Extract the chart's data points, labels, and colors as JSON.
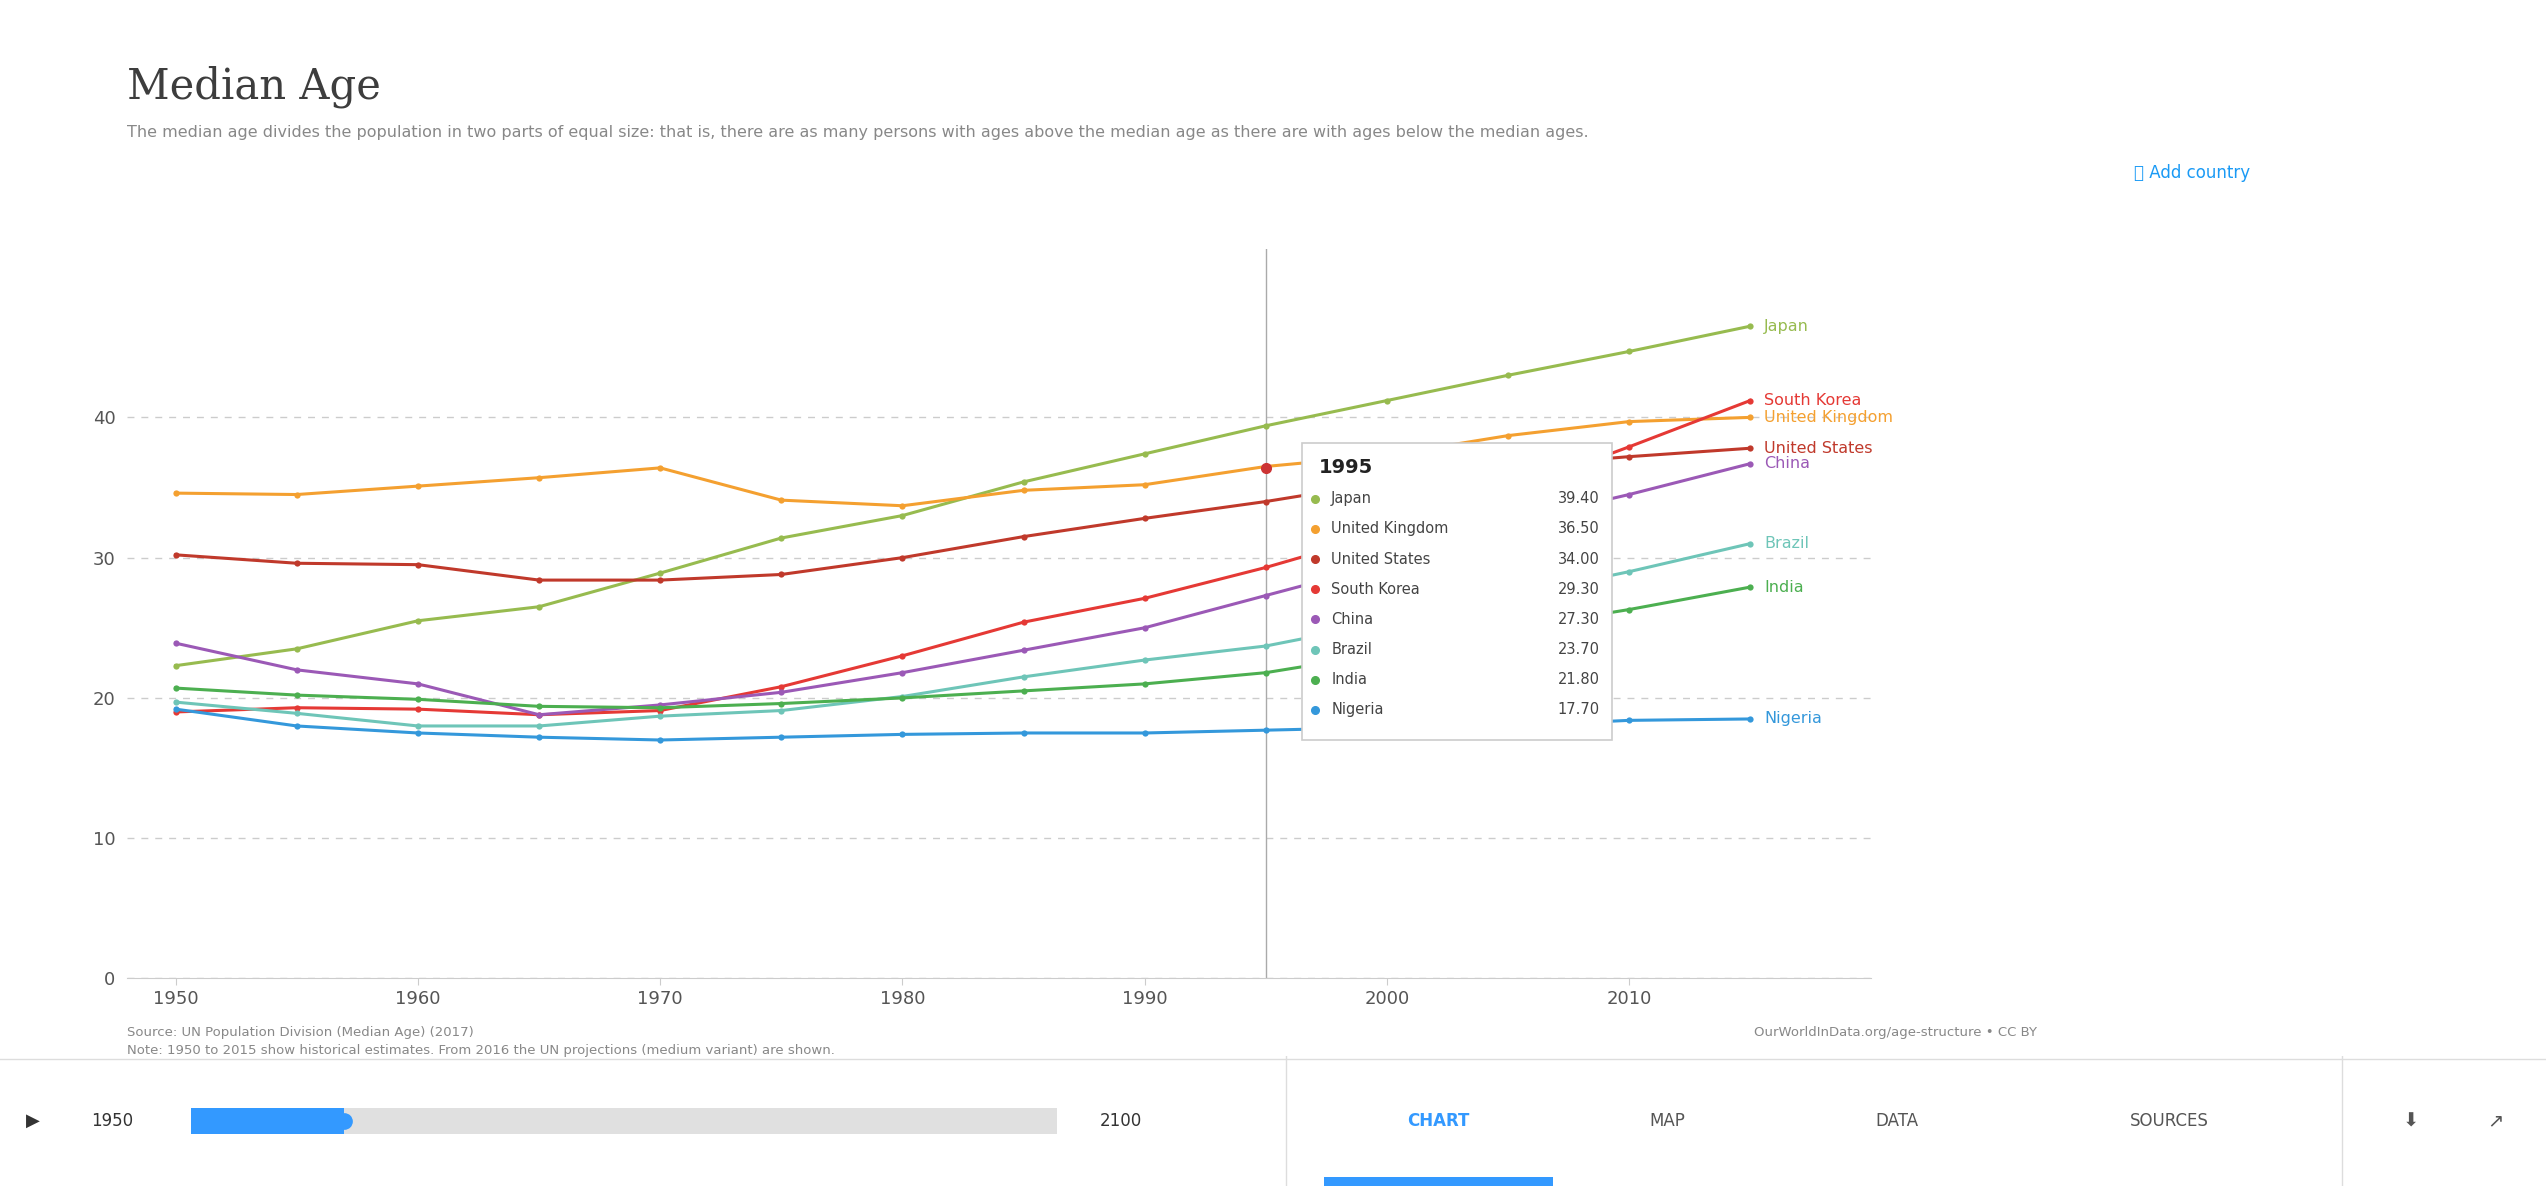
{
  "title": "Median Age",
  "subtitle": "The median age divides the population in two parts of equal size: that is, there are as many persons with ages above the median age as there are with ages below the median ages.",
  "source_left": "Source: UN Population Division (Median Age) (2017)\nNote: 1950 to 2015 show historical estimates. From 2016 the UN projections (medium variant) are shown.",
  "source_right": "OurWorldInData.org/age-structure • CC BY",
  "logo_text": "Our World\nin Data",
  "add_country_text": "➕ Add country",
  "tooltip_year": "1995",
  "tooltip_values": {
    "Japan": 39.4,
    "United Kingdom": 36.5,
    "United States": 34.0,
    "South Korea": 29.3,
    "China": 27.3,
    "Brazil": 23.7,
    "India": 21.8,
    "Nigeria": 17.7
  },
  "tooltip_order": [
    "Japan",
    "United Kingdom",
    "United States",
    "South Korea",
    "China",
    "Brazil",
    "India",
    "Nigeria"
  ],
  "series": {
    "Japan": {
      "color": "#97bb4f",
      "years": [
        1950,
        1955,
        1960,
        1965,
        1970,
        1975,
        1980,
        1985,
        1990,
        1995,
        2000,
        2005,
        2010,
        2015
      ],
      "values": [
        22.3,
        23.5,
        25.5,
        26.5,
        28.9,
        31.4,
        33.0,
        35.4,
        37.4,
        39.4,
        41.2,
        43.0,
        44.7,
        46.5
      ]
    },
    "United Kingdom": {
      "color": "#f4a030",
      "years": [
        1950,
        1955,
        1960,
        1965,
        1970,
        1975,
        1980,
        1985,
        1990,
        1995,
        2000,
        2005,
        2010,
        2015
      ],
      "values": [
        34.6,
        34.5,
        35.1,
        35.7,
        36.4,
        34.1,
        33.7,
        34.8,
        35.2,
        36.5,
        37.3,
        38.7,
        39.7,
        40.0
      ]
    },
    "United States": {
      "color": "#c0392b",
      "years": [
        1950,
        1955,
        1960,
        1965,
        1970,
        1975,
        1980,
        1985,
        1990,
        1995,
        2000,
        2005,
        2010,
        2015
      ],
      "values": [
        30.2,
        29.6,
        29.5,
        28.4,
        28.4,
        28.8,
        30.0,
        31.5,
        32.8,
        34.0,
        35.4,
        36.5,
        37.2,
        37.8
      ]
    },
    "South Korea": {
      "color": "#e53935",
      "years": [
        1950,
        1955,
        1960,
        1965,
        1970,
        1975,
        1980,
        1985,
        1990,
        1995,
        2000,
        2005,
        2010,
        2015
      ],
      "values": [
        19.0,
        19.3,
        19.2,
        18.8,
        19.1,
        20.8,
        23.0,
        25.4,
        27.1,
        29.3,
        31.8,
        34.7,
        37.9,
        41.2
      ]
    },
    "China": {
      "color": "#9b59b6",
      "years": [
        1950,
        1955,
        1960,
        1965,
        1970,
        1975,
        1980,
        1985,
        1990,
        1995,
        2000,
        2005,
        2010,
        2015
      ],
      "values": [
        23.9,
        22.0,
        21.0,
        18.8,
        19.5,
        20.4,
        21.8,
        23.4,
        25.0,
        27.3,
        29.6,
        32.5,
        34.5,
        36.7
      ]
    },
    "Brazil": {
      "color": "#6ec5b8",
      "years": [
        1950,
        1955,
        1960,
        1965,
        1970,
        1975,
        1980,
        1985,
        1990,
        1995,
        2000,
        2005,
        2010,
        2015
      ],
      "values": [
        19.7,
        18.9,
        18.0,
        18.0,
        18.7,
        19.1,
        20.1,
        21.5,
        22.7,
        23.7,
        25.4,
        27.2,
        29.0,
        31.0
      ]
    },
    "India": {
      "color": "#4caf50",
      "years": [
        1950,
        1955,
        1960,
        1965,
        1970,
        1975,
        1980,
        1985,
        1990,
        1995,
        2000,
        2005,
        2010,
        2015
      ],
      "values": [
        20.7,
        20.2,
        19.9,
        19.4,
        19.3,
        19.6,
        20.0,
        20.5,
        21.0,
        21.8,
        23.2,
        24.9,
        26.3,
        27.9
      ]
    },
    "Nigeria": {
      "color": "#3498db",
      "years": [
        1950,
        1955,
        1960,
        1965,
        1970,
        1975,
        1980,
        1985,
        1990,
        1995,
        2000,
        2005,
        2010,
        2015
      ],
      "values": [
        19.2,
        18.0,
        17.5,
        17.2,
        17.0,
        17.2,
        17.4,
        17.5,
        17.5,
        17.7,
        17.9,
        18.0,
        18.4,
        18.5
      ]
    }
  },
  "ylim": [
    0,
    52
  ],
  "yticks": [
    0,
    10,
    20,
    30,
    40
  ],
  "xlim": [
    1948,
    2020
  ],
  "xticks": [
    1950,
    1960,
    1970,
    1980,
    1990,
    2000,
    2010
  ],
  "tooltip_x": 1995,
  "bg_color": "#ffffff",
  "grid_color": "#cccccc",
  "right_labels": {
    "Japan": [
      46.5,
      "#97bb4f"
    ],
    "South Korea": [
      41.2,
      "#e53935"
    ],
    "United Kingdom": [
      39.5,
      "#f4a030"
    ],
    "United States": [
      37.4,
      "#c0392b"
    ],
    "China": [
      36.0,
      "#9b59b6"
    ],
    "Brazil": [
      31.0,
      "#6ec5b8"
    ],
    "India": [
      27.9,
      "#4caf50"
    ],
    "Nigeria": [
      18.4,
      "#3498db"
    ]
  }
}
